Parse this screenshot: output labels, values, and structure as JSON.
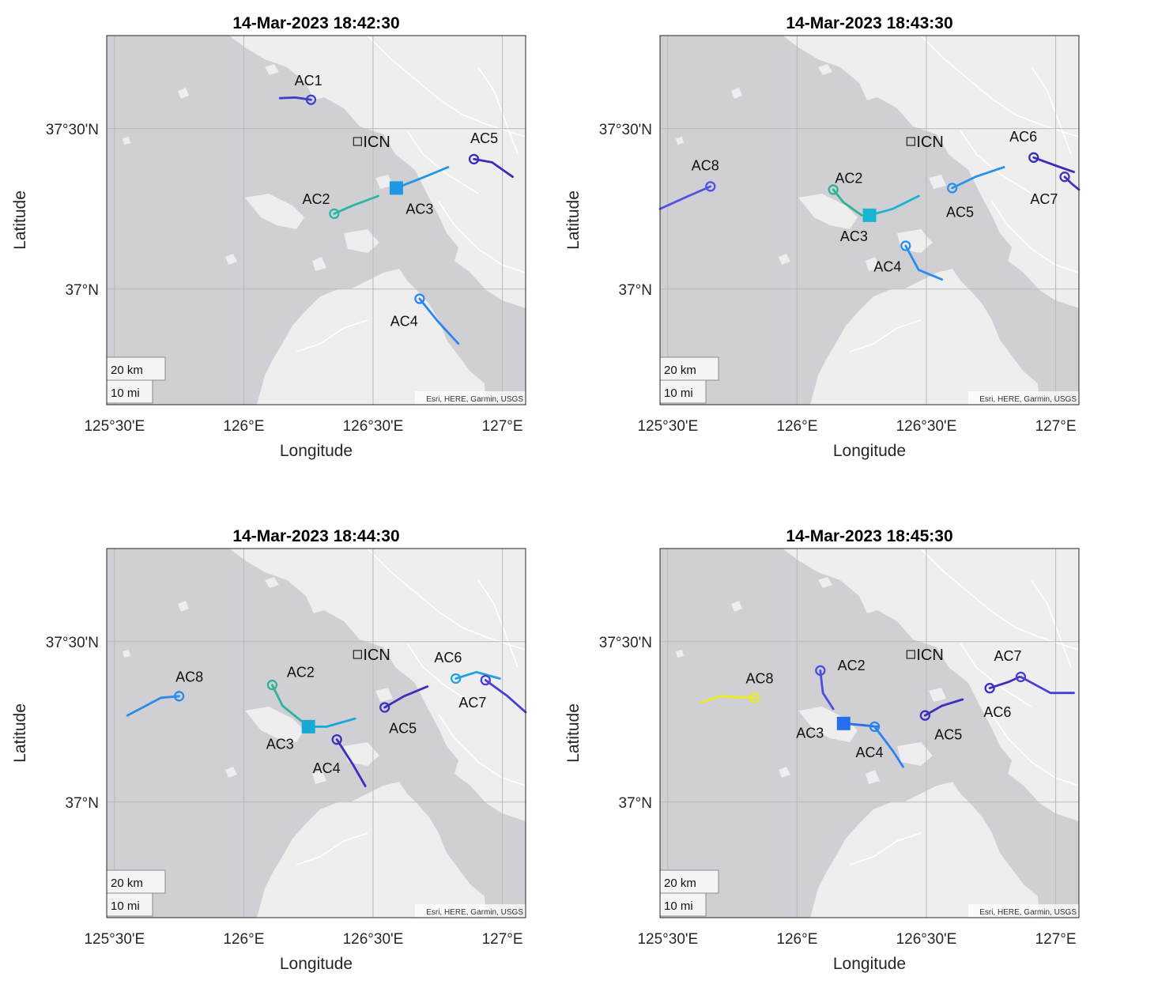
{
  "chart_data": [
    {
      "type": "scatter",
      "title": "14-Mar-2023 18:42:30",
      "xlabel": "Longitude",
      "ylabel": "Latitude",
      "xlim": [
        125.47,
        127.09
      ],
      "ylim": [
        36.64,
        37.79
      ],
      "xticks": [
        {
          "value": 125.5,
          "label": "125°30'E"
        },
        {
          "value": 126.0,
          "label": "126°E"
        },
        {
          "value": 126.5,
          "label": "126°30'E"
        },
        {
          "value": 127.0,
          "label": "127°E"
        }
      ],
      "yticks": [
        {
          "value": 37.5,
          "label": "37°30'N"
        },
        {
          "value": 37.0,
          "label": "37°N"
        }
      ],
      "scalebar": {
        "km": "20 km",
        "mi": "10 mi"
      },
      "attribution": "Esri, HERE, Garmin, USGS",
      "airport": {
        "label": "ICN",
        "lon": 126.44,
        "lat": 37.46
      },
      "aircraft": [
        {
          "id": "AC1",
          "color": "#3f3fcf",
          "marker": "circle",
          "lon": 126.26,
          "lat": 37.59,
          "trail": [
            [
              126.14,
              37.595
            ],
            [
              126.2,
              37.597
            ],
            [
              126.26,
              37.59
            ]
          ],
          "label_dlon": -0.01,
          "label_dlat": 0.06
        },
        {
          "id": "AC2",
          "color": "#27b7a7",
          "marker": "circle",
          "lon": 126.35,
          "lat": 37.235,
          "trail": [
            [
              126.35,
              37.235
            ],
            [
              126.42,
              37.26
            ],
            [
              126.52,
              37.29
            ]
          ],
          "label_dlon": -0.07,
          "label_dlat": 0.045
        },
        {
          "id": "AC3",
          "color": "#1f97e3",
          "marker": "square",
          "lon": 126.59,
          "lat": 37.315,
          "trail": [
            [
              126.59,
              37.315
            ],
            [
              126.7,
              37.35
            ],
            [
              126.79,
              37.38
            ]
          ],
          "label_dlon": 0.09,
          "label_dlat": -0.065
        },
        {
          "id": "AC4",
          "color": "#2b86ee",
          "marker": "circle",
          "lon": 126.68,
          "lat": 36.97,
          "trail": [
            [
              126.68,
              36.97
            ],
            [
              126.75,
              36.9
            ],
            [
              126.83,
              36.83
            ]
          ],
          "label_dlon": -0.06,
          "label_dlat": -0.07
        },
        {
          "id": "AC5",
          "color": "#3a2cb5",
          "marker": "circle",
          "lon": 126.89,
          "lat": 37.405,
          "trail": [
            [
              126.89,
              37.405
            ],
            [
              126.96,
              37.395
            ],
            [
              127.04,
              37.35
            ]
          ],
          "label_dlon": 0.04,
          "label_dlat": 0.065
        }
      ]
    },
    {
      "type": "scatter",
      "title": "14-Mar-2023 18:43:30",
      "xlabel": "Longitude",
      "ylabel": "Latitude",
      "xlim": [
        125.47,
        127.09
      ],
      "ylim": [
        36.64,
        37.79
      ],
      "xticks": [
        {
          "value": 125.5,
          "label": "125°30'E"
        },
        {
          "value": 126.0,
          "label": "126°E"
        },
        {
          "value": 126.5,
          "label": "126°30'E"
        },
        {
          "value": 127.0,
          "label": "127°E"
        }
      ],
      "yticks": [
        {
          "value": 37.5,
          "label": "37°30'N"
        },
        {
          "value": 37.0,
          "label": "37°N"
        }
      ],
      "scalebar": {
        "km": "20 km",
        "mi": "10 mi"
      },
      "attribution": "Esri, HERE, Garmin, USGS",
      "airport": {
        "label": "ICN",
        "lon": 126.44,
        "lat": 37.46
      },
      "aircraft": [
        {
          "id": "AC8",
          "color": "#4f53e2",
          "marker": "circle",
          "lon": 125.665,
          "lat": 37.32,
          "trail": [
            [
              125.47,
              37.25
            ],
            [
              125.58,
              37.29
            ],
            [
              125.665,
              37.32
            ]
          ],
          "label_dlon": -0.02,
          "label_dlat": 0.065
        },
        {
          "id": "AC2",
          "color": "#30b29a",
          "marker": "circle",
          "lon": 126.14,
          "lat": 37.31,
          "trail": [
            [
              126.14,
              37.31
            ],
            [
              126.18,
              37.27
            ],
            [
              126.25,
              37.23
            ]
          ],
          "label_dlon": 0.06,
          "label_dlat": 0.035
        },
        {
          "id": "AC3",
          "color": "#17b5d2",
          "marker": "square",
          "lon": 126.28,
          "lat": 37.23,
          "trail": [
            [
              126.28,
              37.23
            ],
            [
              126.37,
              37.25
            ],
            [
              126.47,
              37.29
            ]
          ],
          "label_dlon": -0.06,
          "label_dlat": -0.065
        },
        {
          "id": "AC4",
          "color": "#2a8ef0",
          "marker": "circle",
          "lon": 126.42,
          "lat": 37.135,
          "trail": [
            [
              126.42,
              37.135
            ],
            [
              126.47,
              37.06
            ],
            [
              126.56,
              37.03
            ]
          ],
          "label_dlon": -0.07,
          "label_dlat": -0.065
        },
        {
          "id": "AC5",
          "color": "#2a91ec",
          "marker": "circle",
          "lon": 126.6,
          "lat": 37.315,
          "trail": [
            [
              126.6,
              37.315
            ],
            [
              126.69,
              37.35
            ],
            [
              126.8,
              37.38
            ]
          ],
          "label_dlon": 0.03,
          "label_dlat": -0.075
        },
        {
          "id": "AC6",
          "color": "#3a2db8",
          "marker": "circle",
          "lon": 126.915,
          "lat": 37.41,
          "trail": [
            [
              126.915,
              37.41
            ],
            [
              127.0,
              37.385
            ],
            [
              127.07,
              37.365
            ]
          ],
          "label_dlon": -0.04,
          "label_dlat": 0.065
        },
        {
          "id": "AC7",
          "color": "#4433bf",
          "marker": "circle",
          "lon": 127.035,
          "lat": 37.35,
          "trail": [
            [
              127.035,
              37.35
            ],
            [
              127.06,
              37.33
            ],
            [
              127.09,
              37.31
            ]
          ],
          "label_dlon": -0.08,
          "label_dlat": -0.07
        }
      ]
    },
    {
      "type": "scatter",
      "title": "14-Mar-2023 18:44:30",
      "xlabel": "Longitude",
      "ylabel": "Latitude",
      "xlim": [
        125.47,
        127.09
      ],
      "ylim": [
        36.64,
        37.79
      ],
      "xticks": [
        {
          "value": 125.5,
          "label": "125°30'E"
        },
        {
          "value": 126.0,
          "label": "126°E"
        },
        {
          "value": 126.5,
          "label": "126°30'E"
        },
        {
          "value": 127.0,
          "label": "127°E"
        }
      ],
      "yticks": [
        {
          "value": 37.5,
          "label": "37°30'N"
        },
        {
          "value": 37.0,
          "label": "37°N"
        }
      ],
      "scalebar": {
        "km": "20 km",
        "mi": "10 mi"
      },
      "attribution": "Esri, HERE, Garmin, USGS",
      "airport": {
        "label": "ICN",
        "lon": 126.44,
        "lat": 37.46
      },
      "aircraft": [
        {
          "id": "AC8",
          "color": "#2d8ce7",
          "marker": "circle",
          "lon": 125.75,
          "lat": 37.33,
          "trail": [
            [
              125.55,
              37.27
            ],
            [
              125.68,
              37.325
            ],
            [
              125.75,
              37.33
            ]
          ],
          "label_dlon": 0.04,
          "label_dlat": 0.06
        },
        {
          "id": "AC2",
          "color": "#2fb39a",
          "marker": "circle",
          "lon": 126.11,
          "lat": 37.365,
          "trail": [
            [
              126.11,
              37.365
            ],
            [
              126.15,
              37.3
            ],
            [
              126.25,
              37.235
            ]
          ],
          "label_dlon": 0.11,
          "label_dlat": 0.04
        },
        {
          "id": "AC3",
          "color": "#17a9d6",
          "marker": "square",
          "lon": 126.25,
          "lat": 37.235,
          "trail": [
            [
              126.25,
              37.235
            ],
            [
              126.32,
              37.235
            ],
            [
              126.43,
              37.26
            ]
          ],
          "label_dlon": -0.11,
          "label_dlat": -0.055
        },
        {
          "id": "AC4",
          "color": "#3e2fbe",
          "marker": "circle",
          "lon": 126.36,
          "lat": 37.195,
          "trail": [
            [
              126.36,
              37.195
            ],
            [
              126.42,
              37.12
            ],
            [
              126.47,
              37.05
            ]
          ],
          "label_dlon": -0.04,
          "label_dlat": -0.09
        },
        {
          "id": "AC5",
          "color": "#3e2fbe",
          "marker": "circle",
          "lon": 126.545,
          "lat": 37.295,
          "trail": [
            [
              126.545,
              37.295
            ],
            [
              126.62,
              37.33
            ],
            [
              126.71,
              37.36
            ]
          ],
          "label_dlon": 0.07,
          "label_dlat": -0.065
        },
        {
          "id": "AC6",
          "color": "#21a0e2",
          "marker": "circle",
          "lon": 126.82,
          "lat": 37.385,
          "trail": [
            [
              126.82,
              37.385
            ],
            [
              126.9,
              37.405
            ],
            [
              126.99,
              37.385
            ]
          ],
          "label_dlon": -0.03,
          "label_dlat": 0.065
        },
        {
          "id": "AC7",
          "color": "#4a3fd4",
          "marker": "circle",
          "lon": 126.935,
          "lat": 37.38,
          "trail": [
            [
              126.935,
              37.38
            ],
            [
              127.02,
              37.33
            ],
            [
              127.09,
              37.28
            ]
          ],
          "label_dlon": -0.05,
          "label_dlat": -0.07
        }
      ]
    },
    {
      "type": "scatter",
      "title": "14-Mar-2023 18:45:30",
      "xlabel": "Longitude",
      "ylabel": "Latitude",
      "xlim": [
        125.47,
        127.09
      ],
      "ylim": [
        36.64,
        37.79
      ],
      "xticks": [
        {
          "value": 125.5,
          "label": "125°30'E"
        },
        {
          "value": 126.0,
          "label": "126°E"
        },
        {
          "value": 126.5,
          "label": "126°30'E"
        },
        {
          "value": 127.0,
          "label": "127°E"
        }
      ],
      "yticks": [
        {
          "value": 37.5,
          "label": "37°30'N"
        },
        {
          "value": 37.0,
          "label": "37°N"
        }
      ],
      "scalebar": {
        "km": "20 km",
        "mi": "10 mi"
      },
      "attribution": "Esri, HERE, Garmin, USGS",
      "airport": {
        "label": "ICN",
        "lon": 126.44,
        "lat": 37.46
      },
      "aircraft": [
        {
          "id": "AC8",
          "color": "#eaea1c",
          "marker": "circle",
          "lon": 125.835,
          "lat": 37.325,
          "trail": [
            [
              125.63,
              37.31
            ],
            [
              125.7,
              37.33
            ],
            [
              125.835,
              37.325
            ]
          ],
          "label_dlon": 0.02,
          "label_dlat": 0.06
        },
        {
          "id": "AC2",
          "color": "#4a4fe0",
          "marker": "circle",
          "lon": 126.09,
          "lat": 37.41,
          "trail": [
            [
              126.09,
              37.41
            ],
            [
              126.1,
              37.34
            ],
            [
              126.14,
              37.29
            ]
          ],
          "label_dlon": 0.12,
          "label_dlat": 0.015
        },
        {
          "id": "AC3",
          "color": "#2670ee",
          "marker": "square",
          "lon": 126.18,
          "lat": 37.245,
          "trail": [
            [
              126.18,
              37.245
            ],
            [
              126.25,
              37.24
            ],
            [
              126.31,
              37.235
            ]
          ],
          "label_dlon": -0.13,
          "label_dlat": -0.03
        },
        {
          "id": "AC4",
          "color": "#2b83ed",
          "marker": "circle",
          "lon": 126.3,
          "lat": 37.235,
          "trail": [
            [
              126.3,
              37.235
            ],
            [
              126.37,
              37.16
            ],
            [
              126.41,
              37.11
            ]
          ],
          "label_dlon": -0.02,
          "label_dlat": -0.08
        },
        {
          "id": "AC5",
          "color": "#3e2fbe",
          "marker": "circle",
          "lon": 126.495,
          "lat": 37.27,
          "trail": [
            [
              126.495,
              37.27
            ],
            [
              126.56,
              37.3
            ],
            [
              126.64,
              37.32
            ]
          ],
          "label_dlon": 0.09,
          "label_dlat": -0.06
        },
        {
          "id": "AC6",
          "color": "#3e2fbe",
          "marker": "circle",
          "lon": 126.745,
          "lat": 37.355,
          "trail": [
            [
              126.745,
              37.355
            ],
            [
              126.82,
              37.375
            ],
            [
              126.86,
              37.39
            ]
          ],
          "label_dlon": 0.03,
          "label_dlat": -0.075
        },
        {
          "id": "AC7",
          "color": "#4a3fd4",
          "marker": "circle",
          "lon": 126.865,
          "lat": 37.39,
          "trail": [
            [
              126.865,
              37.39
            ],
            [
              126.98,
              37.34
            ],
            [
              127.07,
              37.34
            ]
          ],
          "label_dlon": -0.05,
          "label_dlat": 0.065
        }
      ]
    }
  ]
}
